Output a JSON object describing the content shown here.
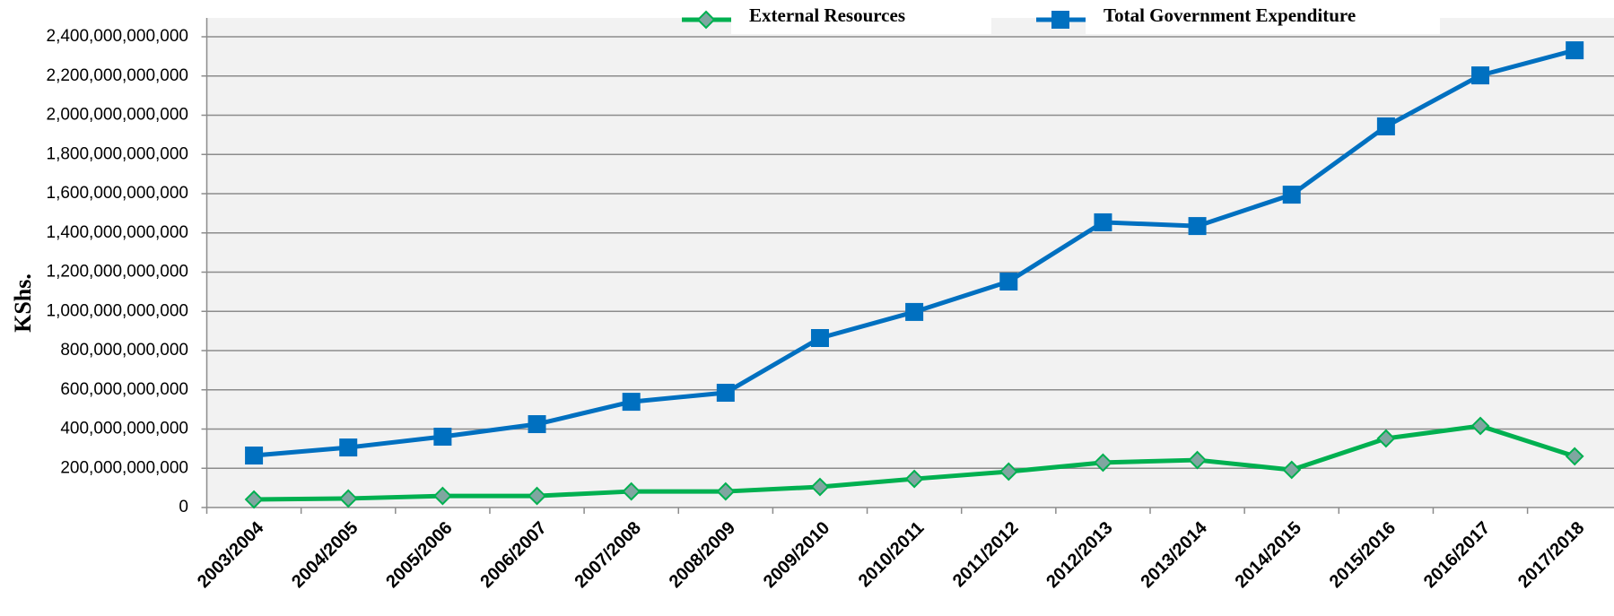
{
  "chart_data": {
    "type": "line",
    "y_label": "KShs.",
    "categories": [
      "2003/2004",
      "2004/2005",
      "2005/2006",
      "2006/2007",
      "2007/2008",
      "2008/2009",
      "2009/2010",
      "2010/2011",
      "2011/2012",
      "2012/2013",
      "2013/2014",
      "2014/2015",
      "2015/2016",
      "2016/2017",
      "2017/2018"
    ],
    "series": [
      {
        "name": "External Resources",
        "color": "#00b050",
        "marker": "diamond",
        "values": [
          41000000000,
          46000000000,
          59000000000,
          59000000000,
          82000000000,
          82000000000,
          105000000000,
          146000000000,
          183000000000,
          229000000000,
          242000000000,
          192000000000,
          352000000000,
          416000000000,
          261000000000
        ]
      },
      {
        "name": "Total Government Expenditure",
        "color": "#0070c0",
        "marker": "square",
        "values": [
          265000000000,
          306000000000,
          361000000000,
          425000000000,
          539000000000,
          585000000000,
          864000000000,
          997000000000,
          1152000000000,
          1454000000000,
          1435000000000,
          1595000000000,
          1943000000000,
          2203000000000,
          2331000000000
        ]
      }
    ],
    "ylim": [
      0,
      2400000000000
    ],
    "yticks": [
      0,
      {
        "value": 200000000000,
        "label": "200,000,000,000"
      },
      {
        "value": 400000000000,
        "label": "400,000,000,000"
      },
      {
        "value": 600000000000,
        "label": "600,000,000,000"
      },
      {
        "value": 800000000000,
        "label": "800,000,000,000"
      },
      {
        "value": 1000000000000,
        "label": "1,000,000,000,000"
      },
      {
        "value": 1200000000000,
        "label": "1,200,000,000,000"
      },
      {
        "value": 1400000000000,
        "label": "1,400,000,000,000"
      },
      {
        "value": 1600000000000,
        "label": "1,600,000,000,000"
      },
      {
        "value": 1800000000000,
        "label": "1,800,000,000,000"
      },
      {
        "value": 2000000000000,
        "label": "2,000,000,000,000"
      },
      {
        "value": 2200000000000,
        "label": "2,200,000,000,000"
      },
      {
        "value": 2400000000000,
        "label": "2,400,000,000,000"
      }
    ],
    "grid": true,
    "legend": "top"
  }
}
